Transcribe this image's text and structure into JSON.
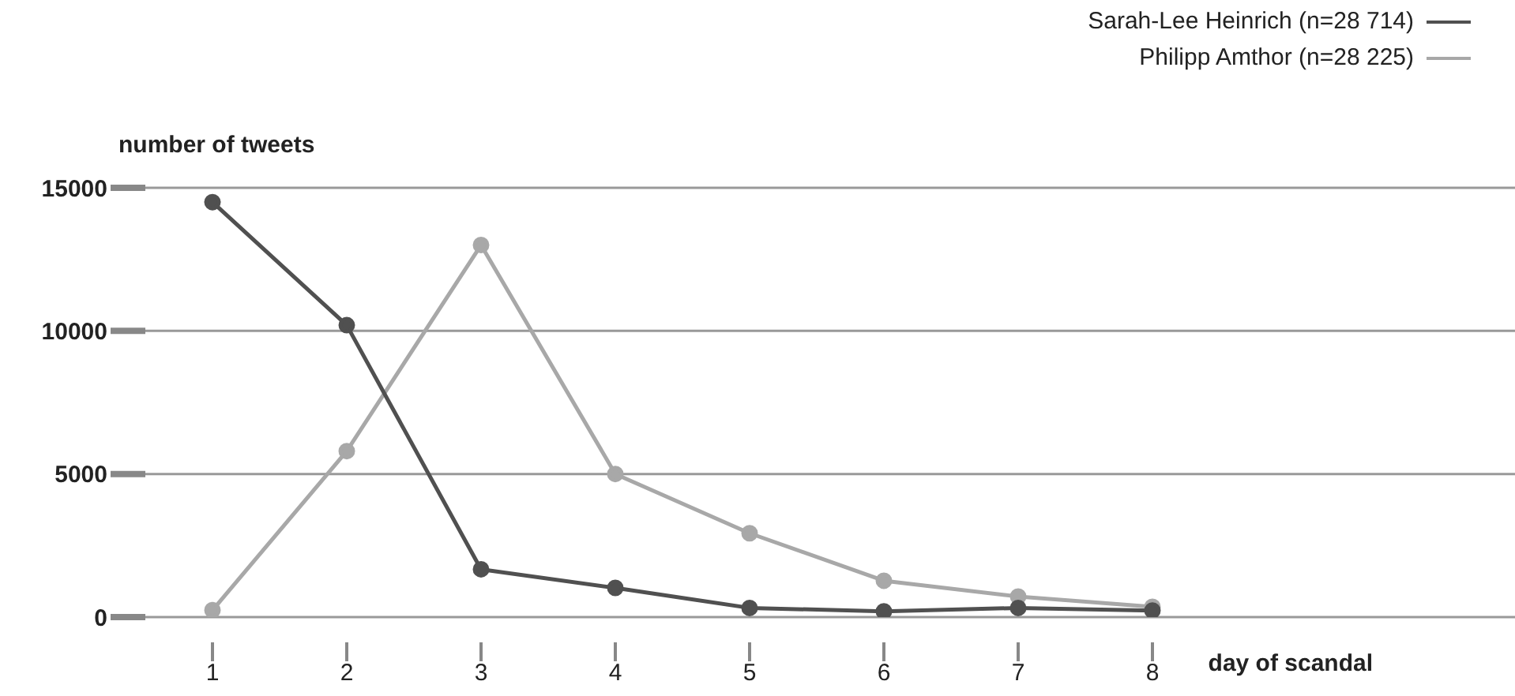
{
  "chart_data": {
    "type": "line",
    "xlabel": "day of scandal",
    "ylabel": "number of tweets",
    "x": [
      1,
      2,
      3,
      4,
      5,
      6,
      7,
      8
    ],
    "series": [
      {
        "name": "Sarah-Lee Heinrich (n=28 714)",
        "color": "#505050",
        "values": [
          14500,
          10200,
          1670,
          1020,
          320,
          200,
          320,
          230
        ]
      },
      {
        "name": "Philipp Amthor (n=28 225)",
        "color": "#a8a8a8",
        "values": [
          240,
          5800,
          13000,
          5000,
          2930,
          1270,
          720,
          360
        ]
      }
    ],
    "xlim": [
      0.5,
      10.7
    ],
    "xticks": [
      1,
      2,
      3,
      4,
      5,
      6,
      7,
      8
    ],
    "ylim": [
      0,
      15000
    ],
    "yticks": [
      0,
      5000,
      10000,
      15000
    ],
    "grid": "y",
    "legend": "top right",
    "marker": "circle",
    "line_style": "solid"
  }
}
